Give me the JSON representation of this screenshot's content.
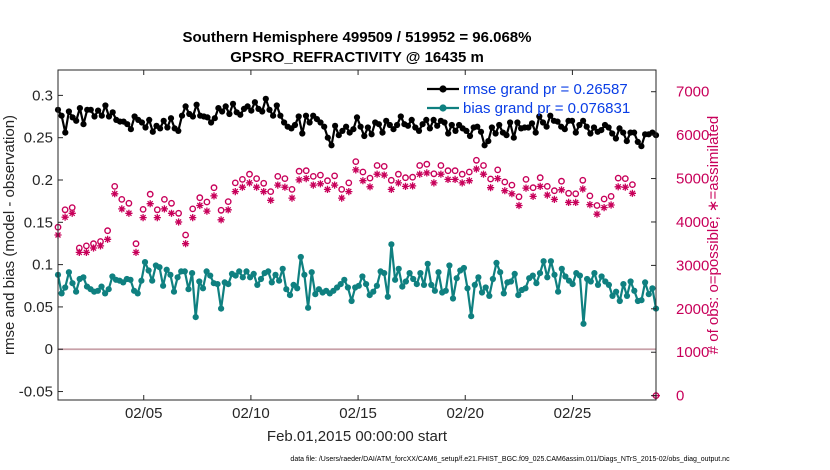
{
  "chart_data": {
    "type": "line",
    "title": [
      "Southern Hemisphere 499509 / 519952 = 96.068%",
      "GPSRO_REFRACTIVITY @ 16435 m"
    ],
    "xlabel": "Feb.01,2015 00:00:00 start",
    "ylabel_left": "rmse and bias (model - observation)",
    "ylabel_right": "# of obs: o=possible; ∗=assimilated",
    "footnote": "data file: /Users/raeder/DAI/ATM_forcXX/CAM6_setup/f.e21.FHIST_BGC.f09_025.CAM6assim.011/Diags_NTrS_2015-02/obs_diag_output.nc",
    "x_start_day": 1,
    "xlim": [
      1,
      28.9
    ],
    "x_ticks": [
      5,
      10,
      15,
      20,
      25
    ],
    "x_tick_labels": [
      "02/05",
      "02/10",
      "02/15",
      "02/20",
      "02/25"
    ],
    "ylim_left": [
      -0.06,
      0.33
    ],
    "y_ticks_left": [
      -0.05,
      0,
      0.05,
      0.1,
      0.15,
      0.2,
      0.25,
      0.3
    ],
    "y_tick_labels_left": [
      "-0.05",
      "0",
      "0.05",
      "0.1",
      "0.15",
      "0.2",
      "0.25",
      "0.3"
    ],
    "ylim_right": [
      -100,
      7500
    ],
    "y_ticks_right": [
      0,
      1000,
      2000,
      3000,
      4000,
      5000,
      6000,
      7000
    ],
    "y_tick_labels_right": [
      "0",
      "1000",
      "2000",
      "3000",
      "4000",
      "5000",
      "6000",
      "7000"
    ],
    "zero_line": 0,
    "legend": {
      "position": "top-right",
      "entries": [
        "rmse grand pr = 0.26587",
        "bias grand pr = 0.076831"
      ]
    },
    "colors": {
      "rmse": "#000000",
      "bias": "#0f8080",
      "obs": "#c8005a",
      "zero": "#c8a0a8",
      "legend_text": "#0a3ee6"
    },
    "series": [
      {
        "name": "rmse grand pr = 0.26587",
        "axis": "left",
        "marker": "filled-dot",
        "values": [
          0.283,
          0.276,
          0.256,
          0.281,
          0.274,
          0.27,
          0.285,
          0.266,
          0.283,
          0.283,
          0.275,
          0.282,
          0.276,
          0.288,
          0.275,
          0.28,
          0.271,
          0.269,
          0.269,
          0.266,
          0.26,
          0.275,
          0.271,
          0.268,
          0.262,
          0.271,
          0.257,
          0.264,
          0.261,
          0.27,
          0.262,
          0.273,
          0.261,
          0.258,
          0.276,
          0.287,
          0.278,
          0.275,
          0.289,
          0.276,
          0.275,
          0.274,
          0.268,
          0.273,
          0.285,
          0.281,
          0.287,
          0.278,
          0.29,
          0.28,
          0.277,
          0.284,
          0.287,
          0.282,
          0.292,
          0.284,
          0.281,
          0.296,
          0.283,
          0.276,
          0.288,
          0.276,
          0.268,
          0.263,
          0.261,
          0.265,
          0.275,
          0.255,
          0.276,
          0.268,
          0.276,
          0.272,
          0.268,
          0.263,
          0.25,
          0.241,
          0.264,
          0.253,
          0.258,
          0.263,
          0.256,
          0.26,
          0.274,
          0.263,
          0.252,
          0.262,
          0.254,
          0.268,
          0.266,
          0.256,
          0.27,
          0.265,
          0.26,
          0.265,
          0.275,
          0.266,
          0.264,
          0.271,
          0.262,
          0.258,
          0.266,
          0.271,
          0.261,
          0.271,
          0.264,
          0.27,
          0.268,
          0.255,
          0.265,
          0.258,
          0.265,
          0.261,
          0.258,
          0.252,
          0.262,
          0.263,
          0.257,
          0.241,
          0.246,
          0.262,
          0.255,
          0.265,
          0.256,
          0.253,
          0.268,
          0.25,
          0.268,
          0.261,
          0.262,
          0.262,
          0.267,
          0.256,
          0.275,
          0.268,
          0.263,
          0.276,
          0.27,
          0.269,
          0.263,
          0.26,
          0.27,
          0.27,
          0.256,
          0.265,
          0.27,
          0.263,
          0.255,
          0.262,
          0.257,
          0.259,
          0.265,
          0.262,
          0.255,
          0.249,
          0.261,
          0.256,
          0.246,
          0.256,
          0.256,
          0.245,
          0.24,
          0.254,
          0.254,
          0.256,
          0.253
        ]
      },
      {
        "name": "bias grand pr = 0.076831",
        "axis": "left",
        "marker": "filled-dot",
        "values": [
          0.088,
          0.066,
          0.073,
          0.091,
          0.078,
          0.068,
          0.083,
          0.085,
          0.074,
          0.071,
          0.068,
          0.069,
          0.074,
          0.066,
          0.071,
          0.086,
          0.082,
          0.081,
          0.079,
          0.083,
          0.082,
          0.069,
          0.066,
          0.081,
          0.103,
          0.093,
          0.081,
          0.099,
          0.097,
          0.075,
          0.094,
          0.088,
          0.068,
          0.085,
          0.092,
          0.092,
          0.071,
          0.09,
          0.038,
          0.08,
          0.072,
          0.092,
          0.087,
          0.078,
          0.077,
          0.048,
          0.079,
          0.077,
          0.089,
          0.087,
          0.092,
          0.085,
          0.092,
          0.085,
          0.089,
          0.076,
          0.083,
          0.09,
          0.092,
          0.079,
          0.088,
          0.081,
          0.095,
          0.071,
          0.064,
          0.076,
          0.072,
          0.109,
          0.088,
          0.049,
          0.091,
          0.065,
          0.071,
          0.067,
          0.069,
          0.066,
          0.069,
          0.073,
          0.077,
          0.082,
          0.073,
          0.057,
          0.073,
          0.075,
          0.086,
          0.077,
          0.064,
          0.068,
          0.075,
          0.092,
          0.09,
          0.062,
          0.124,
          0.082,
          0.095,
          0.074,
          0.08,
          0.09,
          0.083,
          0.077,
          0.09,
          0.076,
          0.101,
          0.076,
          0.069,
          0.091,
          0.067,
          0.069,
          0.099,
          0.06,
          0.084,
          0.093,
          0.096,
          0.072,
          0.039,
          0.076,
          0.085,
          0.067,
          0.073,
          0.063,
          0.083,
          0.102,
          0.091,
          0.066,
          0.079,
          0.08,
          0.089,
          0.064,
          0.07,
          0.072,
          0.084,
          0.087,
          0.078,
          0.09,
          0.104,
          0.085,
          0.104,
          0.088,
          0.068,
          0.095,
          0.086,
          0.081,
          0.077,
          0.09,
          0.087,
          0.03,
          0.083,
          0.08,
          0.09,
          0.076,
          0.086,
          0.08,
          0.076,
          0.063,
          0.068,
          0.057,
          0.077,
          0.063,
          0.08,
          0.069,
          0.057,
          0.058,
          0.079,
          0.065,
          0.072,
          0.048
        ]
      },
      {
        "name": "possible",
        "axis": "right",
        "marker": "open-circle",
        "values": [
          3880,
          4280,
          4330,
          3400,
          3450,
          3500,
          3550,
          3800,
          4820,
          4520,
          4430,
          3500,
          4290,
          4640,
          4280,
          4520,
          4430,
          4200,
          3700,
          4300,
          4560,
          4460,
          4790,
          4270,
          4470,
          4900,
          4980,
          5100,
          5000,
          4890,
          4700,
          5050,
          5000,
          4750,
          5170,
          5180,
          5050,
          5080,
          4950,
          5060,
          4750,
          4900,
          5390,
          5150,
          5010,
          5300,
          5280,
          4960,
          5100,
          5020,
          5030,
          5300,
          5330,
          5110,
          5300,
          5180,
          5180,
          5100,
          5150,
          5420,
          5300,
          4990,
          5200,
          4920,
          4850,
          4580,
          4980,
          4790,
          5020,
          4820,
          4720,
          4940,
          4660,
          4650,
          4960,
          4600,
          4380,
          4530,
          4590,
          5010,
          5000,
          4860
        ]
      },
      {
        "name": "assimilated",
        "axis": "right",
        "marker": "asterisk",
        "values": [
          3700,
          4110,
          4200,
          3300,
          3300,
          3400,
          3450,
          3600,
          4650,
          4300,
          4200,
          3300,
          4100,
          4420,
          4100,
          4300,
          4200,
          4000,
          3500,
          4100,
          4380,
          4250,
          4600,
          4050,
          4280,
          4700,
          4800,
          4900,
          4800,
          4700,
          4500,
          4850,
          4800,
          4550,
          4970,
          5000,
          4850,
          4880,
          4750,
          4850,
          4550,
          4700,
          5200,
          4950,
          4810,
          5100,
          5080,
          4750,
          4900,
          4820,
          4830,
          5100,
          5130,
          4900,
          5100,
          4980,
          4980,
          4900,
          4950,
          5220,
          5100,
          4790,
          5000,
          4720,
          4650,
          4380,
          4780,
          4590,
          4820,
          4620,
          4520,
          4740,
          4450,
          4450,
          4760,
          4400,
          4180,
          4330,
          4390,
          4810,
          4800,
          4660
        ]
      }
    ]
  }
}
